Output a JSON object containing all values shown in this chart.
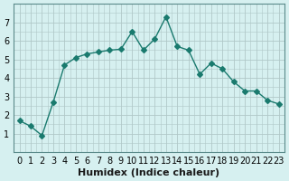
{
  "x": [
    0,
    1,
    2,
    3,
    4,
    5,
    6,
    7,
    8,
    9,
    10,
    11,
    12,
    13,
    14,
    15,
    16,
    17,
    18,
    19,
    20,
    21,
    22,
    23
  ],
  "y": [
    1.7,
    1.4,
    0.9,
    2.7,
    4.7,
    5.1,
    5.3,
    5.4,
    5.5,
    5.55,
    6.5,
    5.5,
    6.1,
    7.3,
    5.7,
    5.5,
    4.2,
    4.8,
    4.5,
    3.8,
    3.3,
    3.3,
    2.8,
    2.6
  ],
  "line_color": "#1a7a6e",
  "marker": "D",
  "marker_size": 3,
  "bg_color": "#d6f0f0",
  "grid_color": "#b0c8c8",
  "xlabel": "Humidex (Indice chaleur)",
  "xlabel_fontsize": 8,
  "tick_fontsize": 7,
  "ylim": [
    0,
    8
  ],
  "xlim": [
    -0.5,
    23.5
  ],
  "yticks": [
    1,
    2,
    3,
    4,
    5,
    6,
    7
  ],
  "xticks": [
    0,
    1,
    2,
    3,
    4,
    5,
    6,
    7,
    8,
    9,
    10,
    11,
    12,
    13,
    14,
    15,
    16,
    17,
    18,
    19,
    20,
    21,
    22,
    23
  ]
}
